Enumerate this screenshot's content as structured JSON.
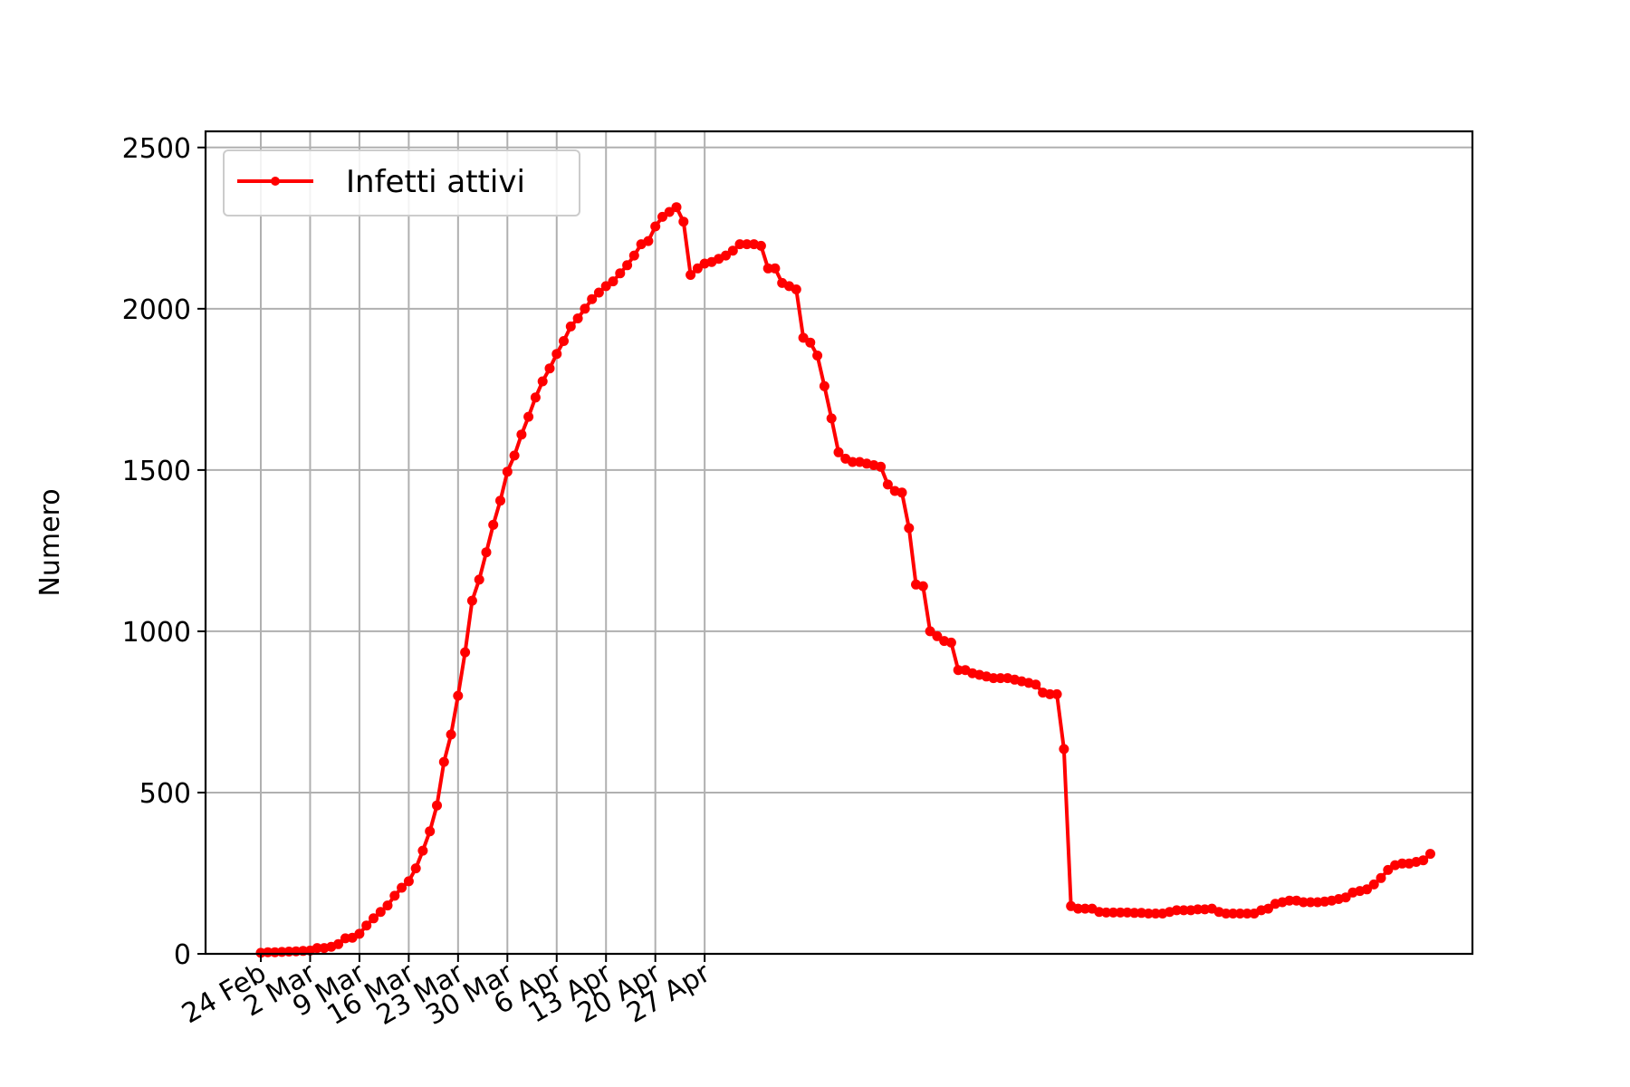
{
  "chart_data": {
    "type": "line",
    "title": "",
    "xlabel": "",
    "ylabel": "Numero",
    "ylim": [
      0,
      2550
    ],
    "yticks": [
      0,
      500,
      1000,
      1500,
      2000,
      2500
    ],
    "grid": true,
    "legend_position": "top-left",
    "x_start_label": "24 Feb",
    "xtick_labels": [
      "24 Feb",
      "2 Mar",
      "9 Mar",
      "16 Mar",
      "23 Mar",
      "30 Mar",
      "6 Apr",
      "13 Apr",
      "20 Apr",
      "27 Apr"
    ],
    "series": [
      {
        "name": "Infetti attivi",
        "color": "#ff0000",
        "values": [
          3,
          5,
          5,
          6,
          7,
          8,
          9,
          10,
          18,
          18,
          22,
          30,
          48,
          50,
          62,
          88,
          110,
          130,
          150,
          180,
          205,
          225,
          265,
          320,
          380,
          460,
          595,
          680,
          800,
          935,
          1095,
          1160,
          1245,
          1330,
          1405,
          1495,
          1545,
          1610,
          1665,
          1725,
          1775,
          1815,
          1860,
          1900,
          1945,
          1970,
          2000,
          2030,
          2050,
          2070,
          2085,
          2110,
          2135,
          2165,
          2200,
          2210,
          2255,
          2285,
          2300,
          2315,
          2270,
          2105,
          2125,
          2140,
          2145,
          2155,
          2165,
          2180,
          2200,
          2200,
          2200,
          2195,
          2125,
          2125,
          2080,
          2070,
          2060,
          1910,
          1895,
          1855,
          1760,
          1660,
          1555,
          1535,
          1525,
          1525,
          1520,
          1515,
          1510,
          1455,
          1435,
          1430,
          1320,
          1145,
          1140,
          1000,
          985,
          970,
          965,
          880,
          880,
          870,
          865,
          860,
          855,
          855,
          855,
          850,
          845,
          840,
          835,
          810,
          805,
          805,
          635,
          148,
          140,
          140,
          140,
          130,
          128,
          128,
          128,
          128,
          127,
          127,
          125,
          125,
          125,
          130,
          135,
          135,
          135,
          138,
          138,
          140,
          130,
          125,
          125,
          125,
          125,
          125,
          135,
          140,
          155,
          160,
          165,
          165,
          160,
          160,
          160,
          162,
          165,
          170,
          175,
          190,
          195,
          200,
          215,
          235,
          260,
          275,
          280,
          280,
          285,
          290,
          310
        ]
      }
    ]
  }
}
